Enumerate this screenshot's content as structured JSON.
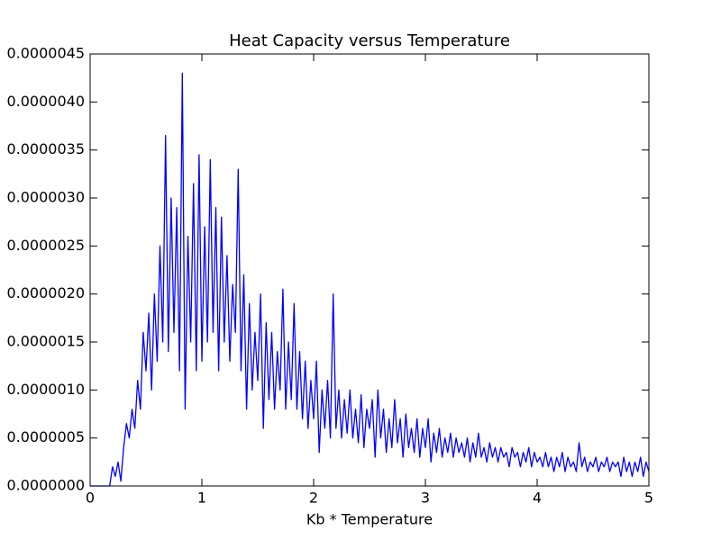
{
  "chart_data": {
    "type": "line",
    "title": "Heat Capacity versus Temperature",
    "x_label": "Kb * Temperature",
    "xlim": [
      0,
      5
    ],
    "ylim": [
      0,
      4.5e-06
    ],
    "xticks": [
      0,
      1,
      2,
      3,
      4,
      5
    ],
    "yticks": [
      {
        "value": 0,
        "label": "0.0000000"
      },
      {
        "value": 5e-07,
        "label": "0.0000005"
      },
      {
        "value": 1e-06,
        "label": "0.0000010"
      },
      {
        "value": 1.5e-06,
        "label": "0.0000015"
      },
      {
        "value": 2e-06,
        "label": "0.0000020"
      },
      {
        "value": 2.5e-06,
        "label": "0.0000025"
      },
      {
        "value": 3e-06,
        "label": "0.0000030"
      },
      {
        "value": 3.5e-06,
        "label": "0.0000035"
      },
      {
        "value": 4e-06,
        "label": "0.0000040"
      },
      {
        "value": 4.5e-06,
        "label": "0.0000045"
      }
    ],
    "grid": false,
    "x": [
      0,
      0.025,
      0.05,
      0.075,
      0.1,
      0.125,
      0.15,
      0.175,
      0.2,
      0.225,
      0.25,
      0.275,
      0.3,
      0.325,
      0.35,
      0.375,
      0.4,
      0.425,
      0.45,
      0.475,
      0.5,
      0.525,
      0.55,
      0.575,
      0.6,
      0.625,
      0.65,
      0.675,
      0.7,
      0.725,
      0.75,
      0.775,
      0.8,
      0.825,
      0.85,
      0.875,
      0.9,
      0.925,
      0.95,
      0.975,
      1,
      1.025,
      1.05,
      1.075,
      1.1,
      1.125,
      1.15,
      1.175,
      1.2,
      1.225,
      1.25,
      1.275,
      1.3,
      1.325,
      1.35,
      1.375,
      1.4,
      1.425,
      1.45,
      1.475,
      1.5,
      1.525,
      1.55,
      1.575,
      1.6,
      1.625,
      1.65,
      1.675,
      1.7,
      1.725,
      1.75,
      1.775,
      1.8,
      1.825,
      1.85,
      1.875,
      1.9,
      1.925,
      1.95,
      1.975,
      2,
      2.025,
      2.05,
      2.075,
      2.1,
      2.125,
      2.15,
      2.175,
      2.2,
      2.225,
      2.25,
      2.275,
      2.3,
      2.325,
      2.35,
      2.375,
      2.4,
      2.425,
      2.45,
      2.475,
      2.5,
      2.525,
      2.55,
      2.575,
      2.6,
      2.625,
      2.65,
      2.675,
      2.7,
      2.725,
      2.75,
      2.775,
      2.8,
      2.825,
      2.85,
      2.875,
      2.9,
      2.925,
      2.95,
      2.975,
      3,
      3.025,
      3.05,
      3.075,
      3.1,
      3.125,
      3.15,
      3.175,
      3.2,
      3.225,
      3.25,
      3.275,
      3.3,
      3.325,
      3.35,
      3.375,
      3.4,
      3.425,
      3.45,
      3.475,
      3.5,
      3.525,
      3.55,
      3.575,
      3.6,
      3.625,
      3.65,
      3.675,
      3.7,
      3.725,
      3.75,
      3.775,
      3.8,
      3.825,
      3.85,
      3.875,
      3.9,
      3.925,
      3.95,
      3.975,
      4,
      4.025,
      4.05,
      4.075,
      4.1,
      4.125,
      4.15,
      4.175,
      4.2,
      4.225,
      4.25,
      4.275,
      4.3,
      4.325,
      4.35,
      4.375,
      4.4,
      4.425,
      4.45,
      4.475,
      4.5,
      4.525,
      4.55,
      4.575,
      4.6,
      4.625,
      4.65,
      4.675,
      4.7,
      4.725,
      4.75,
      4.775,
      4.8,
      4.825,
      4.85,
      4.875,
      4.9,
      4.925,
      4.95,
      4.975,
      5
    ],
    "series": [
      {
        "color": "#0000ff",
        "values": [
          0,
          0,
          0,
          0,
          0,
          0,
          0,
          0,
          2e-07,
          1e-07,
          2.5e-07,
          5e-08,
          4e-07,
          6.5e-07,
          5e-07,
          8e-07,
          6e-07,
          1.1e-06,
          8e-07,
          1.6e-06,
          1.2e-06,
          1.8e-06,
          1e-06,
          2e-06,
          1.3e-06,
          2.5e-06,
          1.5e-06,
          3.65e-06,
          1.4e-06,
          3e-06,
          1.6e-06,
          2.9e-06,
          1.2e-06,
          4.3e-06,
          8e-07,
          2.6e-06,
          1.5e-06,
          3.15e-06,
          1.2e-06,
          3.45e-06,
          1.3e-06,
          2.7e-06,
          1.5e-06,
          3.4e-06,
          1.6e-06,
          2.9e-06,
          1.2e-06,
          2.8e-06,
          1.5e-06,
          2.4e-06,
          1.3e-06,
          2.1e-06,
          1.6e-06,
          3.3e-06,
          1.2e-06,
          2.2e-06,
          8e-07,
          1.9e-06,
          1e-06,
          1.6e-06,
          1.1e-06,
          2e-06,
          6e-07,
          1.7e-06,
          9e-07,
          1.6e-06,
          8e-07,
          1.4e-06,
          1e-06,
          2.05e-06,
          8e-07,
          1.5e-06,
          9e-07,
          1.9e-06,
          8e-07,
          1.4e-06,
          7e-07,
          1.3e-06,
          6e-07,
          1.1e-06,
          7e-07,
          1.3e-06,
          3.5e-07,
          1e-06,
          6e-07,
          1.1e-06,
          5e-07,
          2e-06,
          6e-07,
          1e-06,
          5e-07,
          9e-07,
          5.5e-07,
          1e-06,
          5e-07,
          8e-07,
          4.5e-07,
          9.5e-07,
          4e-07,
          8e-07,
          6e-07,
          9e-07,
          3e-07,
          1e-06,
          5e-07,
          8e-07,
          3.5e-07,
          7e-07,
          4e-07,
          9e-07,
          4.5e-07,
          7e-07,
          3e-07,
          7.5e-07,
          4e-07,
          6e-07,
          3.5e-07,
          7e-07,
          3e-07,
          6e-07,
          4e-07,
          7e-07,
          2.5e-07,
          5.5e-07,
          3.5e-07,
          6e-07,
          3e-07,
          5e-07,
          3.5e-07,
          5.5e-07,
          3e-07,
          5e-07,
          3.5e-07,
          4.5e-07,
          3e-07,
          5e-07,
          2.5e-07,
          4.5e-07,
          3e-07,
          5.5e-07,
          3e-07,
          4e-07,
          2.5e-07,
          4.5e-07,
          3e-07,
          4e-07,
          2.5e-07,
          4e-07,
          3e-07,
          3.5e-07,
          2e-07,
          4e-07,
          3e-07,
          3.5e-07,
          2e-07,
          3.5e-07,
          2.5e-07,
          4e-07,
          2e-07,
          3.5e-07,
          2.5e-07,
          3e-07,
          2e-07,
          3.5e-07,
          2e-07,
          3e-07,
          1.5e-07,
          3e-07,
          2e-07,
          3.5e-07,
          1.5e-07,
          3e-07,
          2e-07,
          2.5e-07,
          1.5e-07,
          4.5e-07,
          2e-07,
          3e-07,
          1.5e-07,
          2.5e-07,
          2e-07,
          3e-07,
          1.5e-07,
          2.5e-07,
          2e-07,
          3e-07,
          1.5e-07,
          2.5e-07,
          2e-07,
          2.5e-07,
          1e-07,
          3e-07,
          1.5e-07,
          2.5e-07,
          1e-07,
          2.5e-07,
          1.5e-07,
          3e-07,
          1e-07,
          2.5e-07,
          1.5e-07
        ]
      }
    ]
  }
}
